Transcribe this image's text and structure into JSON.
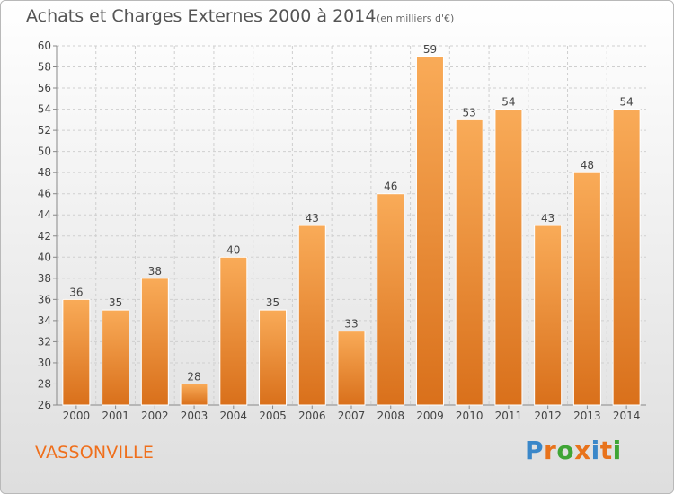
{
  "title": "Achats et Charges Externes 2000 à 2014",
  "subtitle": "(en milliers d'€)",
  "commune": "VASSONVILLE",
  "logo": {
    "letters": [
      "P",
      "r",
      "o",
      "x",
      "i",
      "t",
      "i"
    ],
    "colors": [
      "#3a87c9",
      "#e8731c",
      "#3fa535",
      "#e8731c",
      "#3a87c9",
      "#e8731c",
      "#3fa535"
    ]
  },
  "colors": {
    "bar_light": "#f9ab58",
    "bar_dark": "#d9701b",
    "grid": "#cfcfcf",
    "axis": "#888888",
    "text": "#444444"
  },
  "chart_data": {
    "type": "bar",
    "categories": [
      "2000",
      "2001",
      "2002",
      "2003",
      "2004",
      "2005",
      "2006",
      "2007",
      "2008",
      "2009",
      "2010",
      "2011",
      "2012",
      "2013",
      "2014"
    ],
    "values": [
      36,
      35,
      38,
      28,
      40,
      35,
      43,
      33,
      46,
      59,
      53,
      54,
      43,
      48,
      54
    ],
    "y_ticks": [
      "26",
      "28",
      "30",
      "32",
      "34",
      "36",
      "38",
      "40",
      "42",
      "44",
      "46",
      "48",
      "50",
      "52",
      "54",
      "56",
      "58",
      "60"
    ],
    "ylim": [
      26,
      60
    ],
    "grid": true,
    "data_labels": true
  }
}
